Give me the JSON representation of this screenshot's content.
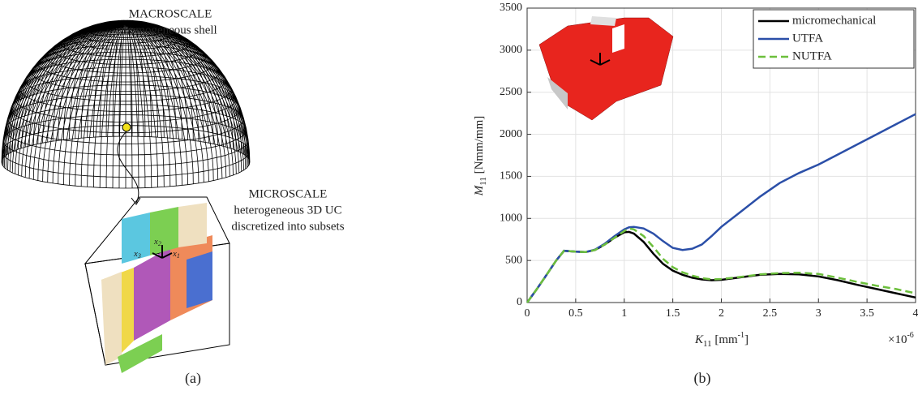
{
  "panel_a": {
    "macro_title": "MACROSCALE",
    "macro_subtitle": "homogeneous shell",
    "micro_lines": [
      "MICROSCALE",
      "heterogeneous 3D UC",
      "discretized into subsets"
    ],
    "axis_symbols": [
      {
        "symbol": "x",
        "sub": "1"
      },
      {
        "symbol": "x",
        "sub": "2"
      },
      {
        "symbol": "x",
        "sub": "3"
      }
    ],
    "caption": "(a)"
  },
  "chart_data": {
    "type": "line",
    "caption": "(b)",
    "xlabel": {
      "symbol": "K",
      "sub": "11",
      "unit": "[mm",
      "sup": "-1",
      "close": "]"
    },
    "ylabel": {
      "symbol": "M",
      "sub": "11",
      "unit": "[Nmm/mm]"
    },
    "x_multiplier": {
      "base": "×10",
      "exp": "-6"
    },
    "x": [
      0,
      0.1,
      0.2,
      0.3,
      0.38,
      0.5,
      0.6,
      0.7,
      0.8,
      0.9,
      1,
      1.05,
      1.1,
      1.2,
      1.3,
      1.4,
      1.5,
      1.6,
      1.7,
      1.8,
      1.9,
      2,
      2.2,
      2.4,
      2.6,
      2.8,
      3,
      3.2,
      3.4,
      3.6,
      3.8,
      4
    ],
    "series": [
      {
        "name": "micromechanical",
        "color": "#000000",
        "linestyle": "solid",
        "values": [
          0,
          160,
          330,
          500,
          615,
          605,
          600,
          625,
          690,
          770,
          835,
          840,
          820,
          720,
          580,
          460,
          380,
          330,
          295,
          275,
          265,
          270,
          300,
          330,
          340,
          335,
          310,
          265,
          210,
          160,
          110,
          60
        ]
      },
      {
        "name": "UTFA",
        "color": "#2b4fa8",
        "linestyle": "solid",
        "values": [
          0,
          160,
          330,
          500,
          615,
          605,
          600,
          630,
          700,
          790,
          870,
          895,
          900,
          880,
          820,
          730,
          650,
          625,
          640,
          690,
          790,
          900,
          1080,
          1260,
          1420,
          1540,
          1640,
          1760,
          1880,
          2000,
          2120,
          2240
        ]
      },
      {
        "name": "NUTFA",
        "color": "#6cbf3c",
        "linestyle": "dashed",
        "values": [
          0,
          160,
          330,
          500,
          615,
          605,
          600,
          625,
          690,
          770,
          850,
          880,
          870,
          790,
          660,
          520,
          420,
          360,
          320,
          290,
          275,
          280,
          305,
          335,
          350,
          355,
          340,
          295,
          245,
          200,
          160,
          110
        ]
      }
    ],
    "xlim": [
      0,
      4
    ],
    "xticks": [
      0,
      0.5,
      1,
      1.5,
      2,
      2.5,
      3,
      3.5,
      4
    ],
    "ylim": [
      0,
      3500
    ],
    "yticks": [
      0,
      500,
      1000,
      1500,
      2000,
      2500,
      3000,
      3500
    ],
    "grid": true,
    "legend": "upper right"
  }
}
